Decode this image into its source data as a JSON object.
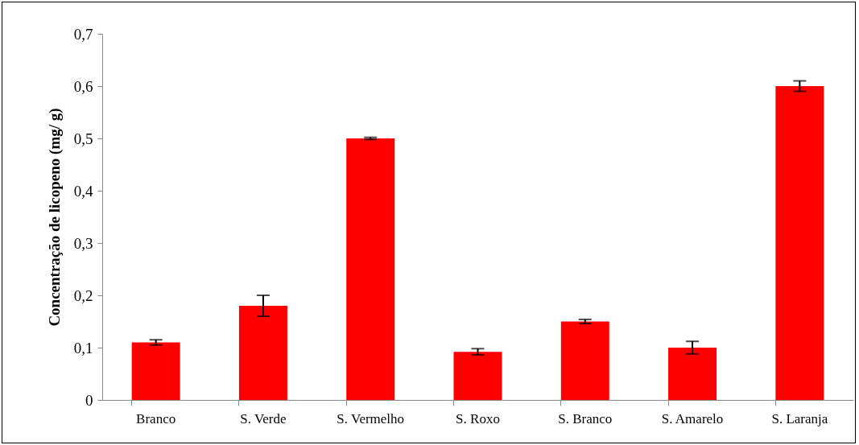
{
  "chart_data": {
    "type": "bar",
    "ylabel": "Concentração de licopeno (mg/ g)",
    "categories": [
      "Branco",
      "S. Verde",
      "S. Vermelho",
      "S. Roxo",
      "S. Branco",
      "S.  Amarelo",
      "S. Laranja"
    ],
    "values": [
      0.11,
      0.18,
      0.5,
      0.092,
      0.15,
      0.1,
      0.6
    ],
    "errors": [
      0.005,
      0.02,
      0.002,
      0.006,
      0.004,
      0.012,
      0.01
    ],
    "color": "#ff0000",
    "ylim": [
      0,
      0.7
    ],
    "yticks": [
      0,
      {
        "value": 0.1,
        "label": "0,1"
      },
      {
        "value": 0.2,
        "label": "0,2"
      },
      {
        "value": 0.3,
        "label": "0,3"
      },
      {
        "value": 0.4,
        "label": "0,4"
      },
      {
        "value": 0.5,
        "label": "0,5"
      },
      {
        "value": 0.6,
        "label": "0,6"
      },
      {
        "value": 0.7,
        "label": "0,7"
      }
    ],
    "grid": false
  }
}
